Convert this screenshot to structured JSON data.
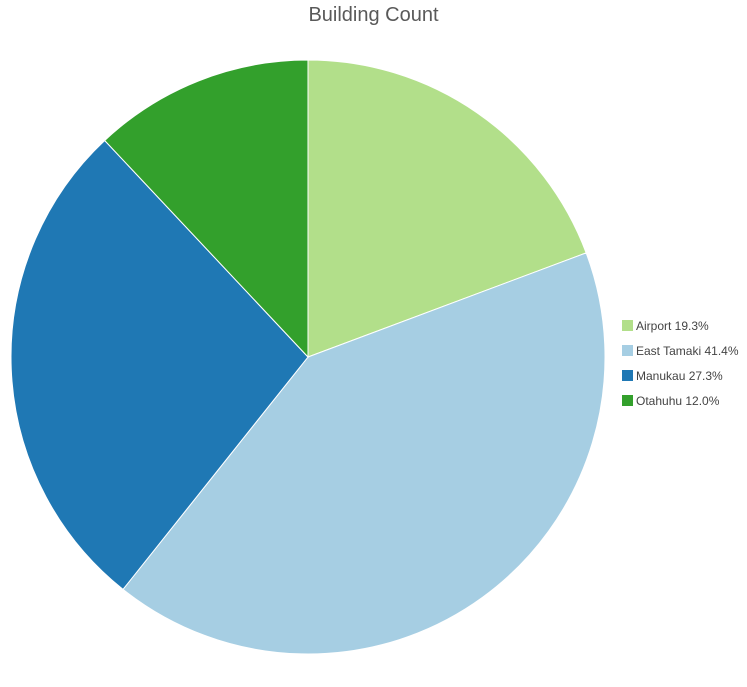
{
  "chart_data": {
    "type": "pie",
    "title": "Building Count",
    "categories": [
      "Airport",
      "East Tamaki",
      "Manukau",
      "Otahuhu"
    ],
    "values": [
      19.3,
      41.4,
      27.3,
      12.0
    ],
    "unit": "%",
    "colors": [
      "#b2df8a",
      "#a6cee3",
      "#1f78b4",
      "#33a02c"
    ],
    "legend_labels": [
      "Airport 19.3%",
      "East Tamaki 41.4%",
      "Manukau 27.3%",
      "Otahuhu 12.0%"
    ],
    "legend_position": "right",
    "start_angle": "top, clockwise"
  }
}
